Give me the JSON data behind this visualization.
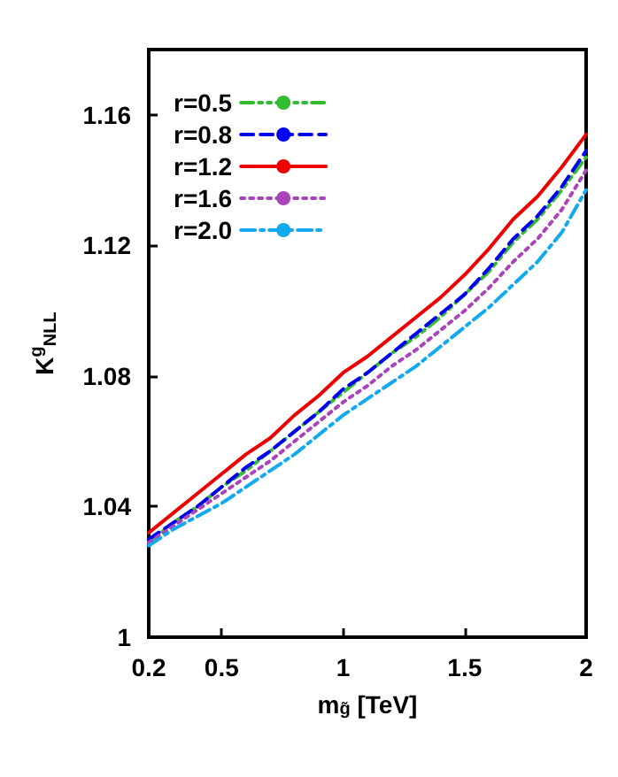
{
  "chart_data": {
    "type": "line",
    "xlabel": "m$_{g̃}$ [TeV]",
    "ylabel": "K$^{g}$$_{NLL}$",
    "x": [
      0.2,
      0.3,
      0.4,
      0.5,
      0.6,
      0.7,
      0.8,
      0.9,
      1.0,
      1.1,
      1.2,
      1.3,
      1.4,
      1.5,
      1.6,
      1.7,
      1.8,
      1.9,
      2.0
    ],
    "series": [
      {
        "name": "r=0.5",
        "color": "#33bb33",
        "line_style": "dashdotdot",
        "values": [
          1.029,
          1.035,
          1.04,
          1.046,
          1.051,
          1.057,
          1.063,
          1.069,
          1.075,
          1.081,
          1.087,
          1.092,
          1.098,
          1.105,
          1.112,
          1.121,
          1.128,
          1.137,
          1.147
        ]
      },
      {
        "name": "r=0.8",
        "color": "#0000ee",
        "line_style": "dashed",
        "values": [
          1.03,
          1.035,
          1.04,
          1.046,
          1.052,
          1.057,
          1.063,
          1.069,
          1.076,
          1.081,
          1.087,
          1.093,
          1.099,
          1.105,
          1.113,
          1.122,
          1.129,
          1.138,
          1.149
        ]
      },
      {
        "name": "r=1.2",
        "color": "#ee0000",
        "line_style": "solid",
        "values": [
          1.032,
          1.038,
          1.044,
          1.05,
          1.056,
          1.061,
          1.068,
          1.074,
          1.081,
          1.086,
          1.092,
          1.098,
          1.104,
          1.111,
          1.119,
          1.128,
          1.135,
          1.144,
          1.154
        ]
      },
      {
        "name": "r=1.6",
        "color": "#aa44bb",
        "line_style": "dotted",
        "values": [
          1.029,
          1.034,
          1.039,
          1.044,
          1.049,
          1.054,
          1.06,
          1.066,
          1.072,
          1.077,
          1.083,
          1.088,
          1.094,
          1.1,
          1.107,
          1.115,
          1.122,
          1.131,
          1.143
        ]
      },
      {
        "name": "r=2.0",
        "color": "#11aaee",
        "line_style": "dashdot",
        "values": [
          1.028,
          1.033,
          1.037,
          1.041,
          1.046,
          1.051,
          1.056,
          1.062,
          1.068,
          1.073,
          1.078,
          1.083,
          1.089,
          1.095,
          1.101,
          1.108,
          1.115,
          1.124,
          1.137
        ]
      }
    ],
    "xlim": [
      0.2,
      2
    ],
    "xticks": [
      0.2,
      0.5,
      1,
      1.5,
      2
    ],
    "ylim": [
      1,
      1.18
    ],
    "yticks": [
      1,
      1.04,
      1.08,
      1.12,
      1.16
    ],
    "grid": false,
    "legend": "top left",
    "marker": "none"
  }
}
